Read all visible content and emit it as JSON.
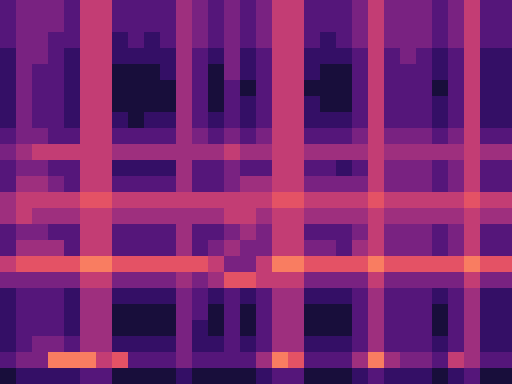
{
  "chart_data": {
    "type": "heatmap",
    "tick_labels": false,
    "grid": false,
    "zlim": [
      0,
      9
    ],
    "cells": [
      [
        3,
        4,
        4,
        4,
        3,
        6,
        6,
        3,
        3,
        3,
        3,
        5,
        4,
        3,
        4,
        3,
        4,
        6,
        6,
        3,
        3,
        3,
        4,
        6,
        4,
        4,
        4,
        3,
        4,
        6,
        3,
        3
      ],
      [
        3,
        4,
        4,
        4,
        3,
        6,
        6,
        3,
        3,
        3,
        3,
        5,
        4,
        3,
        4,
        3,
        4,
        6,
        6,
        3,
        3,
        3,
        4,
        6,
        4,
        4,
        4,
        3,
        4,
        6,
        3,
        3
      ],
      [
        3,
        4,
        4,
        3,
        3,
        6,
        6,
        2,
        3,
        2,
        3,
        5,
        4,
        3,
        4,
        3,
        4,
        6,
        6,
        3,
        2,
        3,
        4,
        6,
        4,
        4,
        4,
        3,
        4,
        6,
        3,
        3
      ],
      [
        2,
        4,
        4,
        3,
        2,
        6,
        6,
        2,
        2,
        2,
        2,
        5,
        3,
        2,
        4,
        2,
        3,
        6,
        6,
        2,
        2,
        2,
        3,
        6,
        3,
        4,
        3,
        2,
        3,
        6,
        2,
        2
      ],
      [
        2,
        4,
        3,
        3,
        2,
        6,
        6,
        1,
        1,
        1,
        2,
        5,
        3,
        1,
        4,
        2,
        3,
        6,
        6,
        2,
        1,
        1,
        3,
        6,
        3,
        3,
        3,
        2,
        3,
        6,
        2,
        2
      ],
      [
        2,
        4,
        3,
        3,
        2,
        6,
        6,
        1,
        1,
        1,
        1,
        5,
        3,
        1,
        3,
        1,
        3,
        6,
        6,
        1,
        1,
        1,
        3,
        6,
        3,
        3,
        3,
        1,
        3,
        6,
        2,
        2
      ],
      [
        2,
        4,
        3,
        3,
        2,
        6,
        6,
        1,
        1,
        1,
        1,
        5,
        3,
        1,
        3,
        2,
        3,
        6,
        6,
        2,
        1,
        1,
        3,
        6,
        3,
        3,
        3,
        2,
        3,
        6,
        2,
        2
      ],
      [
        2,
        4,
        3,
        3,
        2,
        6,
        6,
        2,
        1,
        2,
        2,
        5,
        3,
        2,
        3,
        2,
        3,
        6,
        6,
        2,
        2,
        2,
        3,
        6,
        3,
        3,
        3,
        2,
        3,
        6,
        2,
        2
      ],
      [
        3,
        4,
        4,
        3,
        3,
        6,
        6,
        3,
        3,
        3,
        3,
        5,
        4,
        3,
        4,
        3,
        4,
        6,
        6,
        3,
        3,
        3,
        4,
        6,
        4,
        4,
        4,
        3,
        4,
        6,
        3,
        3
      ],
      [
        4,
        5,
        6,
        6,
        6,
        6,
        6,
        5,
        5,
        5,
        5,
        5,
        5,
        5,
        6,
        5,
        5,
        6,
        6,
        5,
        5,
        5,
        5,
        6,
        5,
        5,
        5,
        5,
        5,
        6,
        5,
        5
      ],
      [
        3,
        4,
        4,
        3,
        3,
        6,
        6,
        2,
        2,
        2,
        2,
        5,
        3,
        3,
        4,
        3,
        3,
        6,
        6,
        3,
        3,
        2,
        3,
        6,
        4,
        4,
        4,
        3,
        4,
        6,
        3,
        3
      ],
      [
        3,
        5,
        5,
        4,
        3,
        6,
        6,
        3,
        3,
        3,
        3,
        5,
        3,
        3,
        4,
        5,
        5,
        6,
        6,
        4,
        4,
        4,
        4,
        6,
        4,
        4,
        4,
        3,
        4,
        6,
        3,
        3
      ],
      [
        5,
        6,
        6,
        6,
        6,
        7,
        7,
        6,
        6,
        6,
        6,
        6,
        6,
        6,
        6,
        6,
        6,
        7,
        7,
        6,
        6,
        6,
        6,
        7,
        6,
        6,
        6,
        6,
        6,
        7,
        6,
        6
      ],
      [
        5,
        6,
        5,
        5,
        5,
        6,
        6,
        5,
        5,
        5,
        5,
        5,
        5,
        5,
        6,
        6,
        5,
        6,
        6,
        5,
        5,
        5,
        5,
        6,
        5,
        5,
        5,
        5,
        5,
        6,
        5,
        5
      ],
      [
        3,
        4,
        4,
        3,
        3,
        6,
        6,
        3,
        3,
        3,
        3,
        5,
        3,
        3,
        4,
        5,
        4,
        6,
        6,
        3,
        3,
        3,
        4,
        6,
        4,
        4,
        4,
        3,
        4,
        6,
        3,
        3
      ],
      [
        3,
        5,
        5,
        5,
        3,
        6,
        6,
        3,
        3,
        3,
        3,
        5,
        3,
        4,
        5,
        4,
        4,
        6,
        6,
        4,
        4,
        3,
        5,
        6,
        4,
        4,
        4,
        3,
        4,
        6,
        3,
        3
      ],
      [
        6,
        7,
        7,
        7,
        7,
        8,
        8,
        7,
        7,
        7,
        7,
        7,
        7,
        6,
        4,
        4,
        6,
        8,
        8,
        7,
        7,
        7,
        7,
        8,
        7,
        7,
        7,
        7,
        7,
        8,
        7,
        7
      ],
      [
        4,
        4,
        4,
        4,
        4,
        6,
        6,
        4,
        4,
        4,
        4,
        5,
        4,
        5,
        7,
        7,
        6,
        6,
        6,
        4,
        4,
        4,
        4,
        6,
        4,
        4,
        4,
        4,
        4,
        6,
        4,
        4
      ],
      [
        2,
        3,
        3,
        3,
        2,
        5,
        5,
        2,
        2,
        2,
        2,
        4,
        3,
        2,
        3,
        2,
        3,
        5,
        5,
        2,
        2,
        2,
        3,
        5,
        3,
        3,
        3,
        2,
        3,
        5,
        2,
        2
      ],
      [
        2,
        3,
        3,
        3,
        2,
        5,
        5,
        1,
        1,
        1,
        1,
        4,
        3,
        1,
        3,
        1,
        3,
        5,
        5,
        1,
        1,
        1,
        3,
        5,
        3,
        3,
        3,
        1,
        3,
        5,
        2,
        2
      ],
      [
        2,
        3,
        3,
        3,
        2,
        5,
        5,
        1,
        1,
        1,
        1,
        4,
        2,
        1,
        3,
        1,
        3,
        5,
        5,
        1,
        1,
        1,
        3,
        5,
        3,
        3,
        3,
        1,
        3,
        5,
        2,
        2
      ],
      [
        2,
        3,
        4,
        4,
        3,
        5,
        5,
        2,
        2,
        2,
        2,
        4,
        2,
        2,
        3,
        2,
        3,
        5,
        5,
        2,
        2,
        2,
        3,
        5,
        3,
        3,
        3,
        2,
        3,
        5,
        2,
        2
      ],
      [
        3,
        4,
        4,
        8,
        8,
        8,
        6,
        7,
        3,
        3,
        3,
        4,
        3,
        3,
        3,
        3,
        5,
        8,
        7,
        3,
        3,
        3,
        5,
        8,
        5,
        4,
        4,
        3,
        6,
        5,
        3,
        3
      ],
      [
        1,
        2,
        2,
        2,
        2,
        3,
        3,
        1,
        1,
        1,
        1,
        2,
        1,
        1,
        1,
        1,
        2,
        3,
        3,
        1,
        1,
        1,
        2,
        3,
        2,
        2,
        2,
        1,
        2,
        3,
        1,
        1
      ]
    ]
  }
}
